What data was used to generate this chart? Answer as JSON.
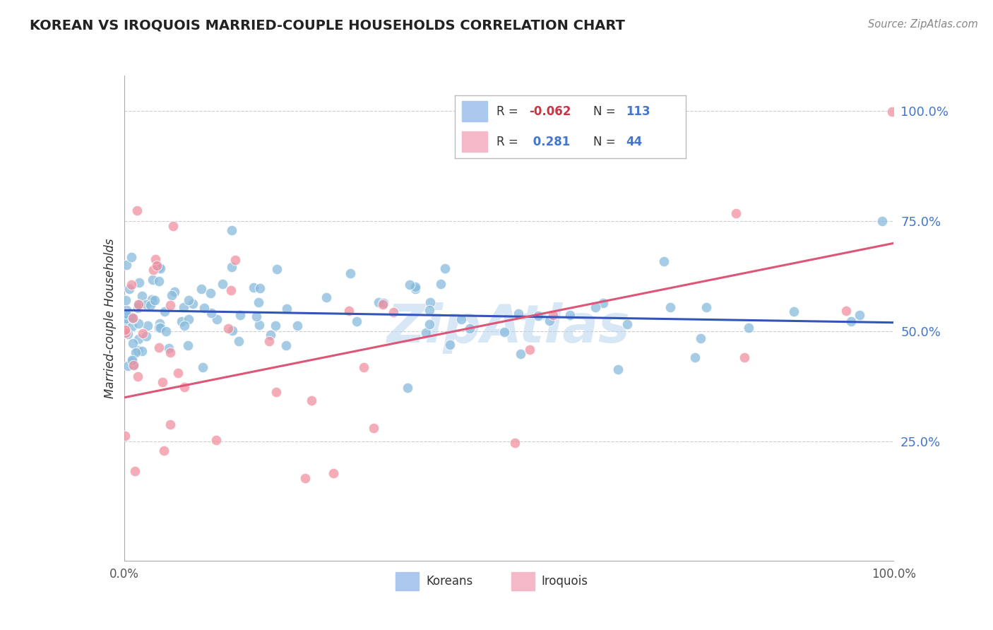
{
  "title": "KOREAN VS IROQUOIS MARRIED-COUPLE HOUSEHOLDS CORRELATION CHART",
  "source": "Source: ZipAtlas.com",
  "ylabel": "Married-couple Households",
  "y_tick_vals": [
    0.25,
    0.5,
    0.75,
    1.0
  ],
  "watermark": "ZipAtlas",
  "korean_color": "#88bbdd",
  "iroquois_color": "#f090a0",
  "korean_line_color": "#3355bb",
  "iroquois_line_color": "#dd5577",
  "R_korean": -0.062,
  "R_iroquois": 0.281,
  "N_korean": 113,
  "N_iroquois": 44,
  "xlim": [
    0.0,
    1.0
  ],
  "ylim": [
    -0.02,
    1.08
  ],
  "background_color": "#ffffff",
  "grid_color": "#cccccc",
  "legend_color_korean": "#aac8ee",
  "legend_color_iroquois": "#f4b8c8",
  "legend_R_neg_color": "#cc3344",
  "legend_R_pos_color": "#4477cc",
  "legend_N_color": "#4477cc",
  "legend_label_color": "#333333"
}
